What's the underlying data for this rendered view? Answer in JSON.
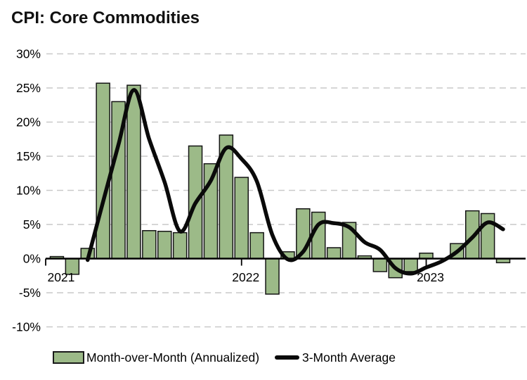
{
  "title": "CPI: Core Commodities",
  "legend": {
    "bars_label": "Month-over-Month (Annualized)",
    "line_label": "3-Month Average"
  },
  "colors": {
    "bar_fill": "#9cba88",
    "bar_stroke": "#141414",
    "line": "#0a0a0a",
    "grid": "#c9c9c9",
    "axis": "#000000",
    "text": "#000000"
  },
  "chart_data": {
    "type": "bar",
    "combo": "bar+line",
    "title": "CPI: Core Commodities",
    "unit": "%",
    "x": [
      "2021-01",
      "2021-02",
      "2021-03",
      "2021-04",
      "2021-05",
      "2021-06",
      "2021-07",
      "2021-08",
      "2021-09",
      "2021-10",
      "2021-11",
      "2021-12",
      "2022-01",
      "2022-02",
      "2022-03",
      "2022-04",
      "2022-05",
      "2022-06",
      "2022-07",
      "2022-08",
      "2022-09",
      "2022-10",
      "2022-11",
      "2022-12",
      "2023-01",
      "2023-02",
      "2023-03",
      "2023-04",
      "2023-05",
      "2023-06"
    ],
    "series": [
      {
        "name": "Month-over-Month (Annualized)",
        "type": "bar",
        "values": [
          0.3,
          -2.3,
          1.5,
          25.7,
          23.0,
          25.4,
          4.1,
          4.0,
          3.8,
          16.5,
          13.9,
          18.1,
          11.9,
          3.8,
          -5.2,
          1.0,
          7.3,
          6.8,
          1.6,
          5.3,
          0.4,
          -1.9,
          -2.8,
          -1.9,
          0.8,
          0.0,
          2.2,
          7.0,
          6.6,
          -0.6
        ]
      },
      {
        "name": "3-Month Average",
        "type": "line",
        "values": [
          null,
          null,
          -0.2,
          8.3,
          16.7,
          24.7,
          17.5,
          11.2,
          4.0,
          8.1,
          11.4,
          16.2,
          14.6,
          11.3,
          3.5,
          -0.1,
          1.0,
          5.0,
          5.2,
          4.6,
          2.4,
          1.3,
          -1.4,
          -2.2,
          -1.3,
          -0.4,
          1.0,
          3.1,
          5.3,
          4.3
        ]
      }
    ],
    "x_tick_labels": [
      {
        "label": "2021",
        "month_index": 0
      },
      {
        "label": "2022",
        "month_index": 12
      },
      {
        "label": "2023",
        "month_index": 24
      }
    ],
    "y_ticks": [
      {
        "label": "30%",
        "value": 30
      },
      {
        "label": "25%",
        "value": 25
      },
      {
        "label": "20%",
        "value": 20
      },
      {
        "label": "15%",
        "value": 15
      },
      {
        "label": "10%",
        "value": 10
      },
      {
        "label": "5%",
        "value": 5
      },
      {
        "label": "0%",
        "value": 0
      },
      {
        "label": "-5%",
        "value": -5
      },
      {
        "label": "-10%",
        "value": -10
      }
    ],
    "ylim": [
      -10,
      30
    ],
    "grid": "horizontal-dashed",
    "legend_position": "bottom"
  }
}
